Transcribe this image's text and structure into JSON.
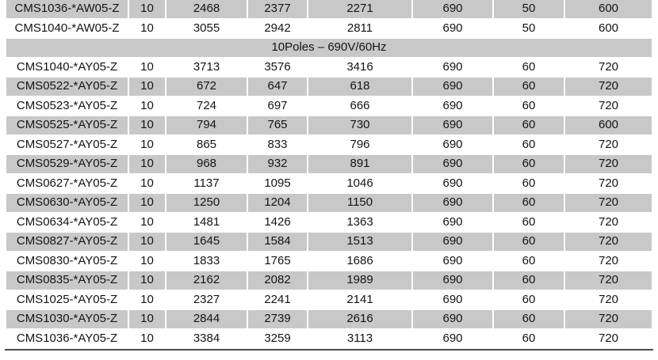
{
  "table": {
    "description": "Motor specification table section",
    "colors": {
      "shaded_row_bg": "#c8c8c8",
      "plain_row_bg": "#ffffff",
      "text": "#141414",
      "bottom_border": "#4a4a4a",
      "cell_separator": "#ffffff"
    },
    "rows": [
      {
        "type": "data",
        "model": "CMS1036-*AW05-Z",
        "cells": [
          "10",
          "2468",
          "2377",
          "2271",
          "690",
          "50",
          "600"
        ]
      },
      {
        "type": "data",
        "model": "CMS1040-*AW05-Z",
        "cells": [
          "10",
          "3055",
          "2942",
          "2811",
          "690",
          "50",
          "600"
        ]
      },
      {
        "type": "section",
        "label": "10Poles – 690V/60Hz"
      },
      {
        "type": "data",
        "model": "CMS1040-*AY05-Z",
        "cells": [
          "10",
          "3713",
          "3576",
          "3416",
          "690",
          "60",
          "720"
        ]
      },
      {
        "type": "data",
        "model": "CMS0522-*AY05-Z",
        "cells": [
          "10",
          "672",
          "647",
          "618",
          "690",
          "60",
          "720"
        ]
      },
      {
        "type": "data",
        "model": "CMS0523-*AY05-Z",
        "cells": [
          "10",
          "724",
          "697",
          "666",
          "690",
          "60",
          "720"
        ]
      },
      {
        "type": "data",
        "model": "CMS0525-*AY05-Z",
        "cells": [
          "10",
          "794",
          "765",
          "730",
          "690",
          "60",
          "600"
        ]
      },
      {
        "type": "data",
        "model": "CMS0527-*AY05-Z",
        "cells": [
          "10",
          "865",
          "833",
          "796",
          "690",
          "60",
          "720"
        ]
      },
      {
        "type": "data",
        "model": "CMS0529-*AY05-Z",
        "cells": [
          "10",
          "968",
          "932",
          "891",
          "690",
          "60",
          "720"
        ]
      },
      {
        "type": "data",
        "model": "CMS0627-*AY05-Z",
        "cells": [
          "10",
          "1137",
          "1095",
          "1046",
          "690",
          "60",
          "720"
        ]
      },
      {
        "type": "data",
        "model": "CMS0630-*AY05-Z",
        "cells": [
          "10",
          "1250",
          "1204",
          "1150",
          "690",
          "60",
          "720"
        ]
      },
      {
        "type": "data",
        "model": "CMS0634-*AY05-Z",
        "cells": [
          "10",
          "1481",
          "1426",
          "1363",
          "690",
          "60",
          "720"
        ]
      },
      {
        "type": "data",
        "model": "CMS0827-*AY05-Z",
        "cells": [
          "10",
          "1645",
          "1584",
          "1513",
          "690",
          "60",
          "720"
        ]
      },
      {
        "type": "data",
        "model": "CMS0830-*AY05-Z",
        "cells": [
          "10",
          "1833",
          "1765",
          "1686",
          "690",
          "60",
          "720"
        ]
      },
      {
        "type": "data",
        "model": "CMS0835-*AY05-Z",
        "cells": [
          "10",
          "2162",
          "2082",
          "1989",
          "690",
          "60",
          "720"
        ]
      },
      {
        "type": "data",
        "model": "CMS1025-*AY05-Z",
        "cells": [
          "10",
          "2327",
          "2241",
          "2141",
          "690",
          "60",
          "720"
        ]
      },
      {
        "type": "data",
        "model": "CMS1030-*AY05-Z",
        "cells": [
          "10",
          "2844",
          "2739",
          "2616",
          "690",
          "60",
          "720"
        ]
      },
      {
        "type": "data",
        "model": "CMS1036-*AY05-Z",
        "cells": [
          "10",
          "3384",
          "3259",
          "3113",
          "690",
          "60",
          "720"
        ]
      }
    ]
  }
}
